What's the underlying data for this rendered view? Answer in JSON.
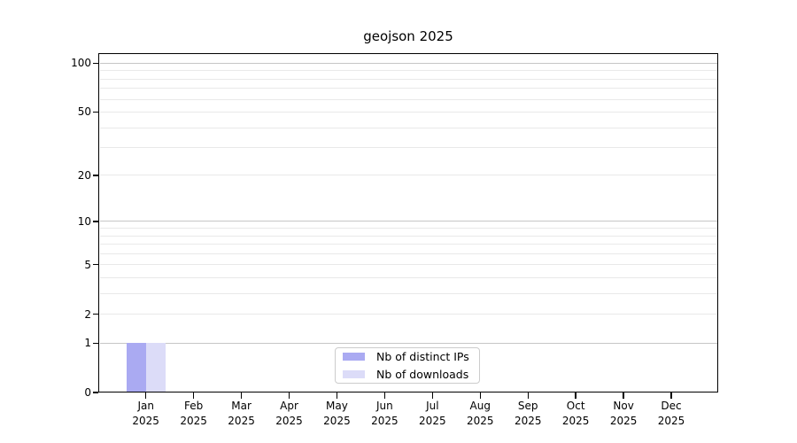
{
  "title": "geojson 2025",
  "chart_data": {
    "type": "bar",
    "title": "geojson 2025",
    "categories": [
      "Jan",
      "Feb",
      "Mar",
      "Apr",
      "May",
      "Jun",
      "Jul",
      "Aug",
      "Sep",
      "Oct",
      "Nov",
      "Dec"
    ],
    "category_year": "2025",
    "series": [
      {
        "name": "Nb of distinct IPs",
        "color": "#aaaaf2",
        "values": [
          1,
          0,
          0,
          0,
          0,
          0,
          0,
          0,
          0,
          0,
          0,
          0
        ]
      },
      {
        "name": "Nb of downloads",
        "color": "#dcdcf8",
        "values": [
          1,
          0,
          0,
          0,
          0,
          0,
          0,
          0,
          0,
          0,
          0,
          0
        ]
      }
    ],
    "yscale": "log1p",
    "ylim": [
      0,
      115
    ],
    "yticks": [
      0,
      1,
      2,
      5,
      10,
      20,
      50,
      100
    ],
    "grid": {
      "major_values": [
        1,
        10,
        100
      ],
      "minor_values": [
        2,
        3,
        4,
        5,
        6,
        7,
        8,
        9,
        20,
        30,
        40,
        50,
        60,
        70,
        80,
        90
      ],
      "major_color": "#c6c6c6",
      "minor_color": "#e9e9e9"
    },
    "legend_position": "lower center",
    "axis_color": "#000000",
    "background_color": "#ffffff"
  }
}
